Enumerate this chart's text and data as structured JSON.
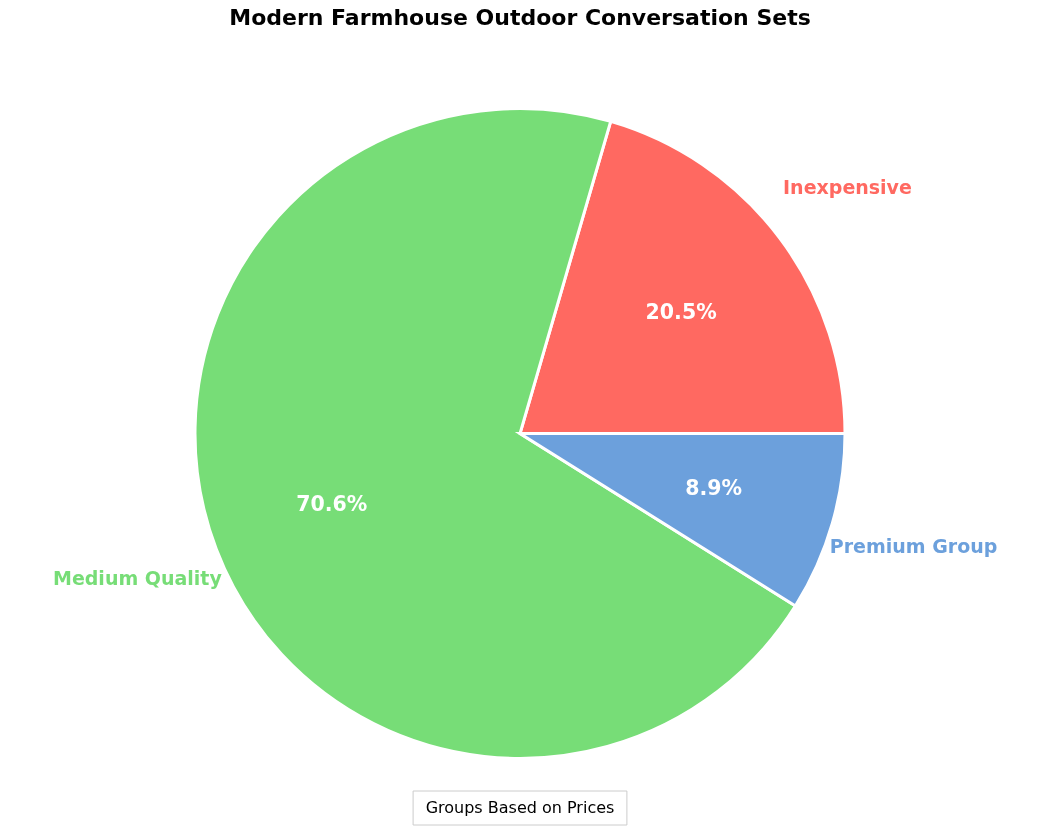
{
  "chart_data": {
    "type": "pie",
    "title": "Modern Farmhouse Outdoor Conversation Sets",
    "categories": [
      "Inexpensive",
      "Medium Quality",
      "Premium Group"
    ],
    "values": [
      20.5,
      70.6,
      8.9
    ],
    "colors": [
      "#ff6961",
      "#77dd77",
      "#6ca0dc"
    ],
    "value_labels": [
      "20.5%",
      "70.6%",
      "8.9%"
    ],
    "annotations": [
      "Groups Based on Prices"
    ]
  }
}
